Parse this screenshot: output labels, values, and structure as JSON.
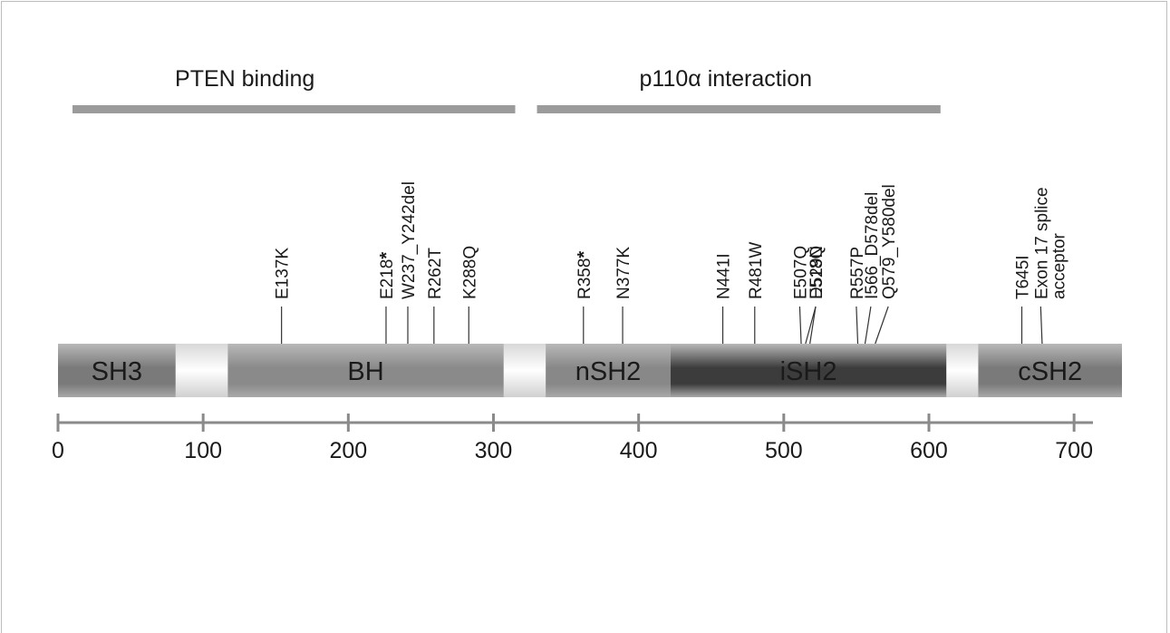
{
  "regions": [
    {
      "label": "PTEN binding",
      "start": 10,
      "end": 315
    },
    {
      "label": "p110α interaction",
      "start": 330,
      "end": 608
    }
  ],
  "domains": [
    {
      "name": "SH3",
      "start": 0,
      "end": 81,
      "shade": "#7a7a7a"
    },
    {
      "name": "BH",
      "start": 117,
      "end": 307,
      "shade": "#8a8a8a"
    },
    {
      "name": "nSH2",
      "start": 336,
      "end": 422,
      "shade": "#888888"
    },
    {
      "name": "iSH2",
      "start": 422,
      "end": 612,
      "shade": "#3c3c3c"
    },
    {
      "name": "cSH2",
      "start": 634,
      "end": 733,
      "shade": "#7a7a7a"
    }
  ],
  "mutations": [
    {
      "label": "E137K",
      "pos": 154,
      "text_pos": 154,
      "star": false
    },
    {
      "label": "E218",
      "pos": 226,
      "text_pos": 226,
      "star": true
    },
    {
      "label": "W237_Y242del",
      "pos": 241,
      "text_pos": 241,
      "star": false
    },
    {
      "label": "R262T",
      "pos": 259,
      "text_pos": 259,
      "star": false
    },
    {
      "label": "K288Q",
      "pos": 283,
      "text_pos": 283,
      "star": false
    },
    {
      "label": "R358",
      "pos": 362,
      "text_pos": 362,
      "star": true
    },
    {
      "label": "N377K",
      "pos": 389,
      "text_pos": 389,
      "star": false
    },
    {
      "label": "N441I",
      "pos": 458,
      "text_pos": 458,
      "star": false
    },
    {
      "label": "R481W",
      "pos": 480,
      "text_pos": 480,
      "star": false
    },
    {
      "label": "E507Q",
      "pos": 512,
      "text_pos": 511,
      "star": false
    },
    {
      "label": "E518Q",
      "pos": 515,
      "text_pos": 522,
      "star": false
    },
    {
      "label": "D529N",
      "pos": 518,
      "text_pos": 522,
      "star": false
    },
    {
      "label": "R557P",
      "pos": 551,
      "text_pos": 550,
      "star": false
    },
    {
      "label": "I566_D578del",
      "pos": 556,
      "text_pos": 560,
      "star": false
    },
    {
      "label": "Q579_Y580del",
      "pos": 563,
      "text_pos": 572,
      "star": false
    },
    {
      "label": "T645I",
      "pos": 664,
      "text_pos": 664,
      "star": false
    },
    {
      "label": "Exon 17 splice",
      "pos": 678,
      "text_pos": 677,
      "star": false
    },
    {
      "label": "acceptor",
      "pos": 678,
      "text_pos": 689,
      "star": false,
      "no_line": true
    }
  ],
  "axis": {
    "ticks": [
      "0",
      "100",
      "200",
      "300",
      "400",
      "500",
      "600",
      "700"
    ]
  },
  "colors": {
    "region_bar": "#9b9b9b",
    "linker": "#c8c8c8",
    "axis": "#8a8a8a",
    "text": "#1a1a1a"
  }
}
